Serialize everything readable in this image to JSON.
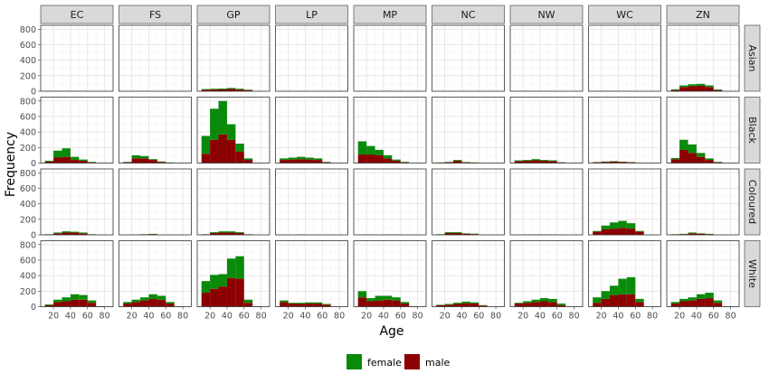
{
  "chart_data": {
    "type": "histogram",
    "title": "",
    "xlabel": "Age",
    "ylabel": "Frequency",
    "xlim": [
      5,
      90
    ],
    "ylim": [
      0,
      850
    ],
    "x_ticks": [
      20,
      40,
      60,
      80
    ],
    "y_ticks": [
      0,
      200,
      400,
      600,
      800
    ],
    "x_tick_labels": [
      "20",
      "40",
      "60",
      "80"
    ],
    "y_tick_labels": [
      "0",
      "200",
      "400",
      "600",
      "800"
    ],
    "grid": true,
    "stacked": true,
    "legend_position": "bottom",
    "columns": [
      "EC",
      "FS",
      "GP",
      "LP",
      "MP",
      "NC",
      "NW",
      "WC",
      "ZN"
    ],
    "rows": [
      "Asian",
      "Black",
      "Coloured",
      "White"
    ],
    "bin_centers": [
      15,
      25,
      35,
      45,
      55,
      65,
      75
    ],
    "series": [
      {
        "name": "female",
        "color": "#0a8a0a"
      },
      {
        "name": "male",
        "color": "#8b0000"
      }
    ],
    "panels": {
      "Asian": {
        "EC": {
          "female": [
            3,
            3,
            3,
            3,
            3,
            0,
            0
          ],
          "male": [
            2,
            2,
            2,
            2,
            2,
            0,
            0
          ]
        },
        "FS": {
          "female": [
            0,
            0,
            3,
            0,
            0,
            0,
            0
          ],
          "male": [
            0,
            0,
            2,
            0,
            0,
            0,
            0
          ]
        },
        "GP": {
          "female": [
            8,
            10,
            10,
            12,
            10,
            5,
            0
          ],
          "male": [
            20,
            22,
            25,
            30,
            22,
            15,
            0
          ]
        },
        "LP": {
          "female": [
            0,
            0,
            0,
            0,
            0,
            0,
            0
          ],
          "male": [
            0,
            0,
            0,
            0,
            0,
            0,
            0
          ]
        },
        "MP": {
          "female": [
            3,
            0,
            0,
            0,
            0,
            0,
            0
          ],
          "male": [
            2,
            0,
            0,
            3,
            0,
            0,
            0
          ]
        },
        "NC": {
          "female": [
            0,
            0,
            0,
            0,
            0,
            0,
            0
          ],
          "male": [
            0,
            0,
            0,
            0,
            0,
            0,
            0
          ]
        },
        "NW": {
          "female": [
            3,
            3,
            0,
            3,
            0,
            0,
            0
          ],
          "male": [
            2,
            2,
            0,
            2,
            0,
            0,
            0
          ]
        },
        "WC": {
          "female": [
            3,
            3,
            3,
            0,
            0,
            0,
            0
          ],
          "male": [
            2,
            2,
            2,
            3,
            0,
            0,
            0
          ]
        },
        "ZN": {
          "female": [
            10,
            20,
            25,
            25,
            20,
            8,
            0
          ],
          "male": [
            15,
            55,
            65,
            70,
            55,
            15,
            0
          ]
        }
      },
      "Black": {
        "EC": {
          "female": [
            10,
            90,
            110,
            40,
            15,
            5,
            0
          ],
          "male": [
            20,
            70,
            80,
            40,
            30,
            10,
            0
          ]
        },
        "FS": {
          "female": [
            5,
            40,
            30,
            10,
            5,
            3,
            0
          ],
          "male": [
            10,
            60,
            60,
            40,
            15,
            5,
            0
          ]
        },
        "GP": {
          "female": [
            230,
            400,
            430,
            200,
            100,
            20,
            0
          ],
          "male": [
            120,
            300,
            370,
            300,
            150,
            40,
            0
          ]
        },
        "LP": {
          "female": [
            20,
            25,
            30,
            25,
            20,
            5,
            0
          ],
          "male": [
            40,
            45,
            50,
            45,
            40,
            10,
            0
          ]
        },
        "MP": {
          "female": [
            170,
            110,
            70,
            40,
            15,
            5,
            0
          ],
          "male": [
            110,
            110,
            100,
            60,
            30,
            10,
            0
          ]
        },
        "NC": {
          "female": [
            3,
            5,
            10,
            3,
            3,
            0,
            0
          ],
          "male": [
            5,
            10,
            30,
            10,
            5,
            0,
            0
          ]
        },
        "NW": {
          "female": [
            10,
            10,
            15,
            10,
            10,
            5,
            0
          ],
          "male": [
            25,
            30,
            35,
            30,
            25,
            5,
            0
          ]
        },
        "WC": {
          "female": [
            3,
            5,
            5,
            3,
            3,
            0,
            0
          ],
          "male": [
            10,
            15,
            20,
            15,
            10,
            3,
            0
          ]
        },
        "ZN": {
          "female": [
            15,
            130,
            110,
            50,
            20,
            5,
            0
          ],
          "male": [
            50,
            170,
            130,
            80,
            40,
            10,
            0
          ]
        }
      },
      "Coloured": {
        "EC": {
          "female": [
            3,
            10,
            15,
            10,
            10,
            3,
            0
          ],
          "male": [
            5,
            20,
            30,
            30,
            20,
            5,
            0
          ]
        },
        "FS": {
          "female": [
            0,
            0,
            3,
            3,
            0,
            0,
            0
          ],
          "male": [
            0,
            3,
            5,
            10,
            0,
            0,
            0
          ]
        },
        "GP": {
          "female": [
            3,
            10,
            15,
            15,
            10,
            3,
            0
          ],
          "male": [
            5,
            25,
            30,
            30,
            25,
            5,
            0
          ]
        },
        "LP": {
          "female": [
            0,
            0,
            3,
            0,
            0,
            0,
            0
          ],
          "male": [
            0,
            0,
            3,
            0,
            0,
            0,
            0
          ]
        },
        "MP": {
          "female": [
            3,
            3,
            0,
            3,
            3,
            0,
            0
          ],
          "male": [
            2,
            2,
            0,
            3,
            3,
            0,
            0
          ]
        },
        "NC": {
          "female": [
            3,
            10,
            10,
            5,
            5,
            0,
            0
          ],
          "male": [
            5,
            25,
            25,
            15,
            10,
            0,
            0
          ]
        },
        "NW": {
          "female": [
            0,
            3,
            3,
            3,
            3,
            0,
            0
          ],
          "male": [
            0,
            3,
            3,
            3,
            3,
            0,
            0
          ]
        },
        "WC": {
          "female": [
            10,
            50,
            80,
            90,
            70,
            10,
            0
          ],
          "male": [
            40,
            70,
            80,
            90,
            80,
            40,
            0
          ]
        },
        "ZN": {
          "female": [
            3,
            3,
            10,
            5,
            3,
            0,
            0
          ],
          "male": [
            5,
            10,
            20,
            15,
            10,
            0,
            0
          ]
        }
      },
      "White": {
        "EC": {
          "female": [
            10,
            30,
            50,
            70,
            60,
            30,
            0
          ],
          "male": [
            20,
            60,
            70,
            90,
            90,
            50,
            5
          ]
        },
        "FS": {
          "female": [
            20,
            30,
            40,
            60,
            50,
            20,
            0
          ],
          "male": [
            40,
            60,
            80,
            100,
            90,
            40,
            5
          ]
        },
        "GP": {
          "female": [
            150,
            180,
            160,
            250,
            290,
            40,
            0
          ],
          "male": [
            180,
            230,
            260,
            370,
            360,
            50,
            5
          ]
        },
        "LP": {
          "female": [
            20,
            10,
            15,
            15,
            15,
            10,
            0
          ],
          "male": [
            60,
            40,
            35,
            40,
            40,
            25,
            0
          ]
        },
        "MP": {
          "female": [
            80,
            40,
            60,
            50,
            40,
            20,
            0
          ],
          "male": [
            120,
            70,
            80,
            90,
            80,
            40,
            5
          ]
        },
        "NC": {
          "female": [
            5,
            10,
            15,
            20,
            15,
            5,
            0
          ],
          "male": [
            20,
            25,
            35,
            45,
            40,
            15,
            0
          ]
        },
        "NW": {
          "female": [
            10,
            20,
            30,
            40,
            40,
            20,
            0
          ],
          "male": [
            40,
            50,
            60,
            70,
            60,
            20,
            0
          ]
        },
        "WC": {
          "female": [
            70,
            100,
            120,
            200,
            220,
            40,
            0
          ],
          "male": [
            50,
            100,
            150,
            160,
            160,
            60,
            0
          ]
        },
        "ZN": {
          "female": [
            20,
            30,
            40,
            60,
            70,
            30,
            0
          ],
          "male": [
            40,
            70,
            80,
            100,
            110,
            50,
            5
          ]
        }
      }
    }
  }
}
